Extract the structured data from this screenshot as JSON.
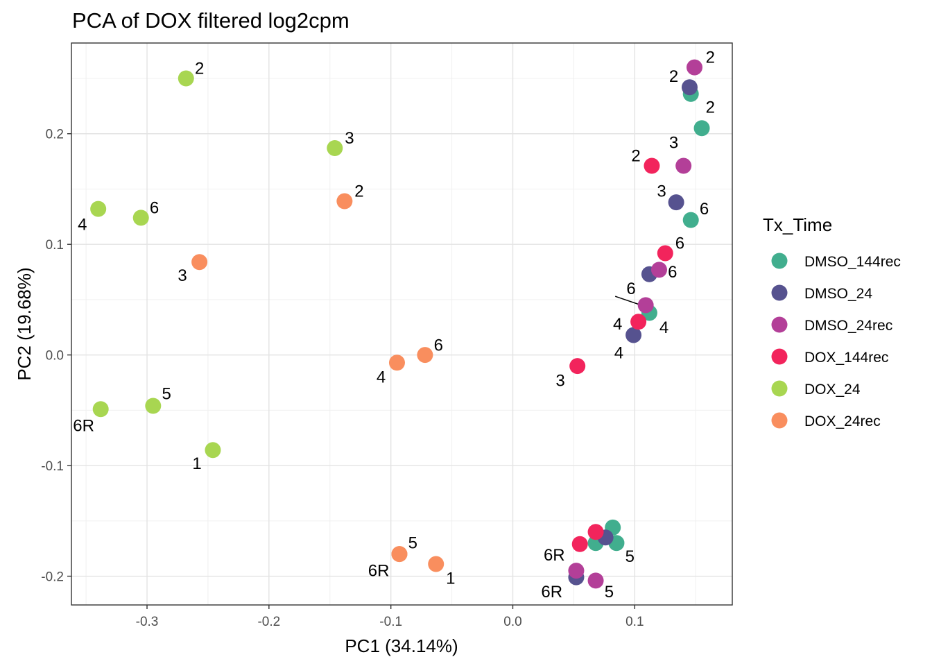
{
  "chart_data": {
    "type": "scatter",
    "title": "PCA of DOX filtered log2cpm",
    "xlabel": "PC1 (34.14%)",
    "ylabel": "PC2 (19.68%)",
    "xlim": [
      -0.362,
      0.18
    ],
    "ylim": [
      -0.226,
      0.282
    ],
    "x_ticks": [
      -0.3,
      -0.2,
      -0.1,
      0.0,
      0.1
    ],
    "x_tick_labels": [
      "-0.3",
      "-0.2",
      "-0.1",
      "0.0",
      "0.1"
    ],
    "y_ticks": [
      -0.2,
      -0.1,
      0.0,
      0.1,
      0.2
    ],
    "y_tick_labels": [
      "-0.2",
      "-0.1",
      "0.0",
      "0.1",
      "0.2"
    ],
    "grid": true,
    "legend": {
      "title": "Tx_Time",
      "placement": "right"
    },
    "series": [
      {
        "name": "DMSO_144rec",
        "color": "#41AE8E",
        "points": [
          {
            "x": 0.146,
            "y": 0.236,
            "label": "",
            "lx": 0.146,
            "ly": 0.236
          },
          {
            "x": 0.155,
            "y": 0.205,
            "label": "2",
            "lx": 0.162,
            "ly": 0.224
          },
          {
            "x": 0.146,
            "y": 0.122,
            "label": "6",
            "lx": 0.157,
            "ly": 0.132
          },
          {
            "x": 0.112,
            "y": 0.038,
            "label": "4",
            "lx": 0.124,
            "ly": 0.025
          },
          {
            "x": 0.082,
            "y": -0.156,
            "label": "",
            "lx": 0.082,
            "ly": -0.156
          },
          {
            "x": 0.085,
            "y": -0.17,
            "label": "5",
            "lx": 0.096,
            "ly": -0.182
          },
          {
            "x": 0.068,
            "y": -0.17,
            "label": "",
            "lx": 0.068,
            "ly": -0.17
          }
        ]
      },
      {
        "name": "DMSO_24",
        "color": "#56528F",
        "points": [
          {
            "x": 0.145,
            "y": 0.242,
            "label": "2",
            "lx": 0.132,
            "ly": 0.252
          },
          {
            "x": 0.134,
            "y": 0.138,
            "label": "3",
            "lx": 0.122,
            "ly": 0.148
          },
          {
            "x": 0.112,
            "y": 0.073,
            "label": "",
            "lx": 0.112,
            "ly": 0.073
          },
          {
            "x": 0.099,
            "y": 0.018,
            "label": "4",
            "lx": 0.087,
            "ly": 0.002
          },
          {
            "x": 0.076,
            "y": -0.165,
            "label": "",
            "lx": 0.076,
            "ly": -0.165
          },
          {
            "x": 0.052,
            "y": -0.201,
            "label": "6R",
            "lx": 0.032,
            "ly": -0.214
          }
        ]
      },
      {
        "name": "DMSO_24rec",
        "color": "#B33F98",
        "points": [
          {
            "x": 0.149,
            "y": 0.26,
            "label": "2",
            "lx": 0.162,
            "ly": 0.269
          },
          {
            "x": 0.14,
            "y": 0.171,
            "label": "3",
            "lx": 0.132,
            "ly": 0.192
          },
          {
            "x": 0.12,
            "y": 0.077,
            "label": "6",
            "lx": 0.131,
            "ly": 0.075
          },
          {
            "x": 0.109,
            "y": 0.045,
            "label": "6",
            "lx": 0.097,
            "ly": 0.06
          },
          {
            "x": 0.052,
            "y": -0.195,
            "label": "",
            "lx": 0.052,
            "ly": -0.195
          },
          {
            "x": 0.068,
            "y": -0.204,
            "label": "5",
            "lx": 0.079,
            "ly": -0.214
          }
        ]
      },
      {
        "name": "DOX_144rec",
        "color": "#F2245C",
        "points": [
          {
            "x": 0.114,
            "y": 0.171,
            "label": "2",
            "lx": 0.101,
            "ly": 0.18
          },
          {
            "x": 0.125,
            "y": 0.092,
            "label": "6",
            "lx": 0.137,
            "ly": 0.101
          },
          {
            "x": 0.103,
            "y": 0.03,
            "label": "4",
            "lx": 0.086,
            "ly": 0.028
          },
          {
            "x": 0.053,
            "y": -0.01,
            "label": "3",
            "lx": 0.039,
            "ly": -0.023
          },
          {
            "x": 0.068,
            "y": -0.16,
            "label": "",
            "lx": 0.068,
            "ly": -0.16
          },
          {
            "x": 0.055,
            "y": -0.171,
            "label": "6R",
            "lx": 0.034,
            "ly": -0.181
          }
        ]
      },
      {
        "name": "DOX_24",
        "color": "#A8D651",
        "points": [
          {
            "x": -0.268,
            "y": 0.25,
            "label": "2",
            "lx": -0.257,
            "ly": 0.259
          },
          {
            "x": -0.146,
            "y": 0.187,
            "label": "3",
            "lx": -0.134,
            "ly": 0.196
          },
          {
            "x": -0.34,
            "y": 0.132,
            "label": "4",
            "lx": -0.353,
            "ly": 0.118
          },
          {
            "x": -0.305,
            "y": 0.124,
            "label": "6",
            "lx": -0.294,
            "ly": 0.133
          },
          {
            "x": -0.295,
            "y": -0.046,
            "label": "5",
            "lx": -0.284,
            "ly": -0.035
          },
          {
            "x": -0.338,
            "y": -0.049,
            "label": "6R",
            "lx": -0.352,
            "ly": -0.064
          },
          {
            "x": -0.246,
            "y": -0.086,
            "label": "1",
            "lx": -0.259,
            "ly": -0.098
          }
        ]
      },
      {
        "name": "DOX_24rec",
        "color": "#F98E5E",
        "points": [
          {
            "x": -0.138,
            "y": 0.139,
            "label": "2",
            "lx": -0.126,
            "ly": 0.148
          },
          {
            "x": -0.257,
            "y": 0.084,
            "label": "3",
            "lx": -0.271,
            "ly": 0.072
          },
          {
            "x": -0.072,
            "y": 0.0,
            "label": "6",
            "lx": -0.061,
            "ly": 0.009
          },
          {
            "x": -0.095,
            "y": -0.007,
            "label": "4",
            "lx": -0.108,
            "ly": -0.02
          },
          {
            "x": -0.093,
            "y": -0.18,
            "label": "5",
            "lx": -0.082,
            "ly": -0.17
          },
          {
            "x": -0.063,
            "y": -0.189,
            "label": "1",
            "lx": -0.051,
            "ly": -0.202
          },
          {
            "x": -0.093,
            "y": -0.18,
            "label": "6R",
            "lx": -0.11,
            "ly": -0.195
          }
        ]
      }
    ],
    "connectors": [
      {
        "x1": 0.084,
        "y1": 0.053,
        "x2": 0.108,
        "y2": 0.044
      }
    ]
  }
}
